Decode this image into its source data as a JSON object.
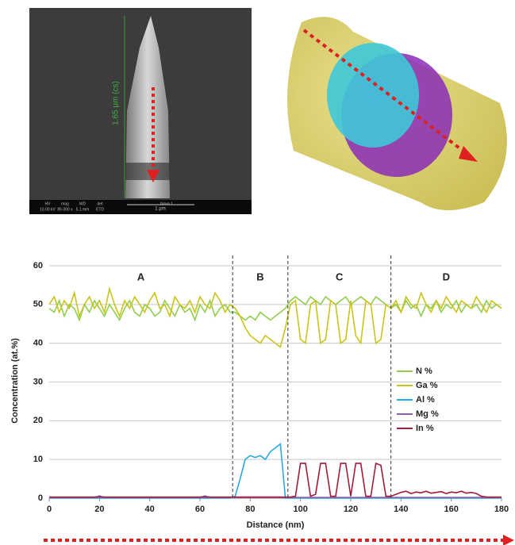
{
  "images": {
    "sem_label": "1.65 µm (cs)",
    "scale_bar": "1 µm",
    "info_bar": [
      "HV",
      "mag",
      "WD",
      "det",
      "10.00 kV",
      "85 000 x",
      "5.1 mm",
      "ETD",
      "Nova 1"
    ]
  },
  "chart_data": {
    "type": "line",
    "xlabel": "Distance (nm)",
    "ylabel": "Concentration (at.%)",
    "xlim": [
      0,
      180
    ],
    "xticks": [
      0,
      20,
      40,
      60,
      80,
      100,
      120,
      140,
      160,
      180
    ],
    "ylim": [
      0,
      60
    ],
    "yticks": [
      0,
      10,
      20,
      30,
      40,
      50,
      60
    ],
    "grid": true,
    "boundaries": [
      73,
      95,
      136
    ],
    "annotations": [
      "A",
      "B",
      "C",
      "D"
    ],
    "legend": "center right",
    "x": [
      0,
      2,
      4,
      6,
      8,
      10,
      12,
      14,
      16,
      18,
      20,
      22,
      24,
      26,
      28,
      30,
      32,
      34,
      36,
      38,
      40,
      42,
      44,
      46,
      48,
      50,
      52,
      54,
      56,
      58,
      60,
      62,
      64,
      66,
      68,
      70,
      72,
      74,
      76,
      78,
      80,
      82,
      84,
      86,
      88,
      90,
      92,
      94,
      96,
      98,
      100,
      102,
      104,
      106,
      108,
      110,
      112,
      114,
      116,
      118,
      120,
      122,
      124,
      126,
      128,
      130,
      132,
      134,
      136,
      138,
      140,
      142,
      144,
      146,
      148,
      150,
      152,
      154,
      156,
      158,
      160,
      162,
      164,
      166,
      168,
      170,
      172,
      174,
      176,
      178,
      180
    ],
    "series": [
      {
        "name": "N %",
        "color": "#8fce4f",
        "values": [
          49,
          48,
          51,
          47,
          50,
          49,
          46,
          50,
          48,
          51,
          49,
          47,
          50,
          48,
          46,
          49,
          51,
          48,
          47,
          50,
          49,
          47,
          48,
          51,
          49,
          47,
          50,
          48,
          49,
          46,
          50,
          48,
          51,
          47,
          49,
          50,
          48,
          48,
          47,
          46,
          47,
          46,
          48,
          47,
          46,
          47,
          48,
          49,
          51,
          52,
          51,
          50,
          52,
          51,
          50,
          52,
          51,
          50,
          51,
          52,
          50,
          51,
          52,
          51,
          50,
          52,
          51,
          50,
          49,
          50,
          48,
          51,
          49,
          50,
          47,
          50,
          49,
          51,
          48,
          50,
          49,
          51,
          48,
          50,
          49,
          50,
          48,
          51,
          49,
          50,
          49
        ]
      },
      {
        "name": "Ga %",
        "color": "#c8c41a",
        "values": [
          50,
          52,
          48,
          51,
          49,
          53,
          47,
          50,
          52,
          49,
          51,
          48,
          54,
          50,
          47,
          51,
          49,
          52,
          50,
          48,
          51,
          53,
          49,
          50,
          47,
          52,
          50,
          49,
          51,
          48,
          52,
          50,
          49,
          53,
          51,
          48,
          50,
          49,
          47,
          44,
          42,
          41,
          40,
          42,
          41,
          40,
          39,
          44,
          50,
          51,
          41,
          40,
          50,
          51,
          40,
          41,
          51,
          50,
          40,
          41,
          51,
          42,
          40,
          51,
          50,
          40,
          41,
          50,
          49,
          51,
          48,
          52,
          50,
          49,
          53,
          50,
          48,
          51,
          49,
          52,
          50,
          48,
          51,
          50,
          49,
          52,
          50,
          48,
          51,
          50,
          49
        ]
      },
      {
        "name": "Al %",
        "color": "#29a9e0",
        "values": [
          0,
          0,
          0,
          0,
          0,
          0,
          0,
          0,
          0,
          0,
          0,
          0,
          0,
          0,
          0,
          0,
          0,
          0,
          0,
          0,
          0,
          0,
          0,
          0,
          0,
          0,
          0,
          0,
          0,
          0,
          0,
          0,
          0,
          0,
          0,
          0,
          0,
          0.5,
          5,
          10,
          11,
          10.5,
          11,
          10,
          12,
          13,
          14,
          0,
          0,
          0,
          0,
          0,
          0,
          0,
          0,
          0,
          0,
          0,
          0,
          0,
          0,
          0,
          0,
          0,
          0,
          0,
          0,
          0,
          0,
          0,
          0,
          0,
          0,
          0,
          0,
          0,
          0,
          0,
          0,
          0,
          0,
          0,
          0,
          0,
          0,
          0,
          0,
          0,
          0,
          0,
          0
        ]
      },
      {
        "name": "Mg %",
        "color": "#8c5fa8",
        "values": [
          0.2,
          0.2,
          0.2,
          0.2,
          0.2,
          0.2,
          0.2,
          0.2,
          0.2,
          0.2,
          0.6,
          0.2,
          0.2,
          0.2,
          0.2,
          0.2,
          0.2,
          0.2,
          0.2,
          0.2,
          0.2,
          0.2,
          0.2,
          0.2,
          0.2,
          0.2,
          0.2,
          0.2,
          0.2,
          0.2,
          0.2,
          0.6,
          0.2,
          0.2,
          0.2,
          0.2,
          0.2,
          0.2,
          0.2,
          0.2,
          0.2,
          0.2,
          0.2,
          0.2,
          0.2,
          0.2,
          0.2,
          0.2,
          0.2,
          0.2,
          0.2,
          0.2,
          0.2,
          0.2,
          0.2,
          0.2,
          0.2,
          0.2,
          0.2,
          0.2,
          0.2,
          0.2,
          0.2,
          0.2,
          0.2,
          0.2,
          0.2,
          0.2,
          0.2,
          0.2,
          0.2,
          0.2,
          0.2,
          0.2,
          0.2,
          0.2,
          0.2,
          0.2,
          0.2,
          0.2,
          0.2,
          0.2,
          0.2,
          0.2,
          0.2,
          0.2,
          0.2,
          0.2,
          0.2,
          0.2,
          0.2
        ]
      },
      {
        "name": "In %",
        "color": "#a31a3a",
        "values": [
          0.3,
          0.3,
          0.3,
          0.3,
          0.3,
          0.3,
          0.3,
          0.3,
          0.3,
          0.3,
          0.3,
          0.3,
          0.3,
          0.3,
          0.3,
          0.3,
          0.3,
          0.3,
          0.3,
          0.3,
          0.3,
          0.3,
          0.3,
          0.3,
          0.3,
          0.3,
          0.3,
          0.3,
          0.3,
          0.3,
          0.3,
          0.3,
          0.3,
          0.3,
          0.3,
          0.3,
          0.3,
          0.3,
          0.3,
          0.3,
          0.3,
          0.3,
          0.3,
          0.3,
          0.3,
          0.3,
          0.3,
          0.3,
          0.3,
          0.5,
          9,
          9,
          0.5,
          1,
          9,
          9,
          0.5,
          0.5,
          9,
          9,
          0.5,
          9,
          9,
          0.5,
          0.5,
          9,
          8.5,
          0.5,
          0.5,
          1,
          1.5,
          1.8,
          1.2,
          1.6,
          1.4,
          1.8,
          1.3,
          1.5,
          1.7,
          1.2,
          1.6,
          1.4,
          1.8,
          1.3,
          1.5,
          1.2,
          0.5,
          0.3,
          0.3,
          0.3,
          0.3
        ]
      }
    ]
  }
}
